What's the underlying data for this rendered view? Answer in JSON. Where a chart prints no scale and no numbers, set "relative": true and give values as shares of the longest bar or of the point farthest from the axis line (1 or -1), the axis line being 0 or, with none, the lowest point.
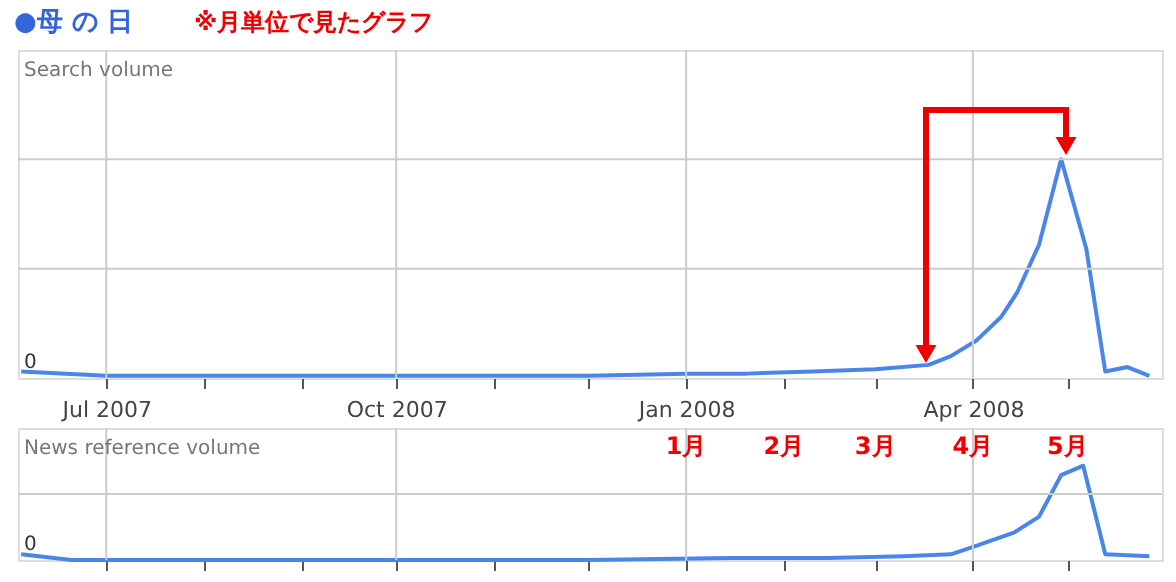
{
  "chart_data": [
    {
      "type": "line",
      "title": "●母 の 日",
      "subtitle": "※月単位で見たグラフ",
      "ylabel": "Search volume",
      "relative": true,
      "grid": true,
      "marker": "none",
      "line_style": "solid",
      "tick_labels": "x",
      "xlim": [
        "2007-06-03",
        "2008-05-31"
      ],
      "xticks": [
        {
          "value": "2007-07-01",
          "label": "Jul 2007"
        },
        {
          "value": "2007-08-01",
          "label": null
        },
        {
          "value": "2007-09-01",
          "label": null
        },
        {
          "value": "2007-10-01",
          "label": "Oct 2007"
        },
        {
          "value": "2007-11-01",
          "label": null
        },
        {
          "value": "2007-12-01",
          "label": null
        },
        {
          "value": "2008-01-01",
          "label": "Jan 2008"
        },
        {
          "value": "2008-02-01",
          "label": null
        },
        {
          "value": "2008-03-01",
          "label": null
        },
        {
          "value": "2008-04-01",
          "label": "Apr 2008"
        },
        {
          "value": "2008-05-01",
          "label": null
        }
      ],
      "annotations": [
        "0"
      ],
      "series": [
        {
          "color": "#4a86e8",
          "x": [
            "2007-06-04",
            "2007-07-01",
            "2007-08-01",
            "2007-09-01",
            "2007-10-01",
            "2007-11-01",
            "2007-12-01",
            "2008-01-01",
            "2008-01-20",
            "2008-02-10",
            "2008-03-01",
            "2008-03-18",
            "2008-03-25",
            "2008-04-02",
            "2008-04-10",
            "2008-04-15",
            "2008-04-22",
            "2008-04-29",
            "2008-05-07",
            "2008-05-13",
            "2008-05-20",
            "2008-05-27"
          ],
          "values": [
            0.03,
            0.01,
            0.01,
            0.01,
            0.01,
            0.01,
            0.01,
            0.02,
            0.02,
            0.03,
            0.04,
            0.06,
            0.1,
            0.17,
            0.28,
            0.39,
            0.61,
            1.0,
            0.59,
            0.03,
            0.05,
            0.01
          ]
        }
      ]
    },
    {
      "type": "line",
      "ylabel": "News reference volume",
      "relative": true,
      "grid": true,
      "marker": "none",
      "line_style": "solid",
      "tick_labels": false,
      "xlim": [
        "2007-06-03",
        "2008-05-31"
      ],
      "annotations": [
        "0",
        "1月",
        "2月",
        "3月",
        "4月",
        "5月"
      ],
      "series": [
        {
          "color": "#4a86e8",
          "x": [
            "2007-06-04",
            "2007-06-20",
            "2007-08-01",
            "2007-10-01",
            "2007-12-01",
            "2008-01-15",
            "2008-02-15",
            "2008-03-10",
            "2008-03-25",
            "2008-04-02",
            "2008-04-14",
            "2008-04-22",
            "2008-04-29",
            "2008-05-06",
            "2008-05-13",
            "2008-05-27"
          ],
          "values": [
            0.06,
            0.0,
            0.0,
            0.0,
            0.0,
            0.02,
            0.02,
            0.04,
            0.06,
            0.15,
            0.29,
            0.46,
            0.9,
            1.0,
            0.06,
            0.04
          ]
        }
      ]
    }
  ]
}
